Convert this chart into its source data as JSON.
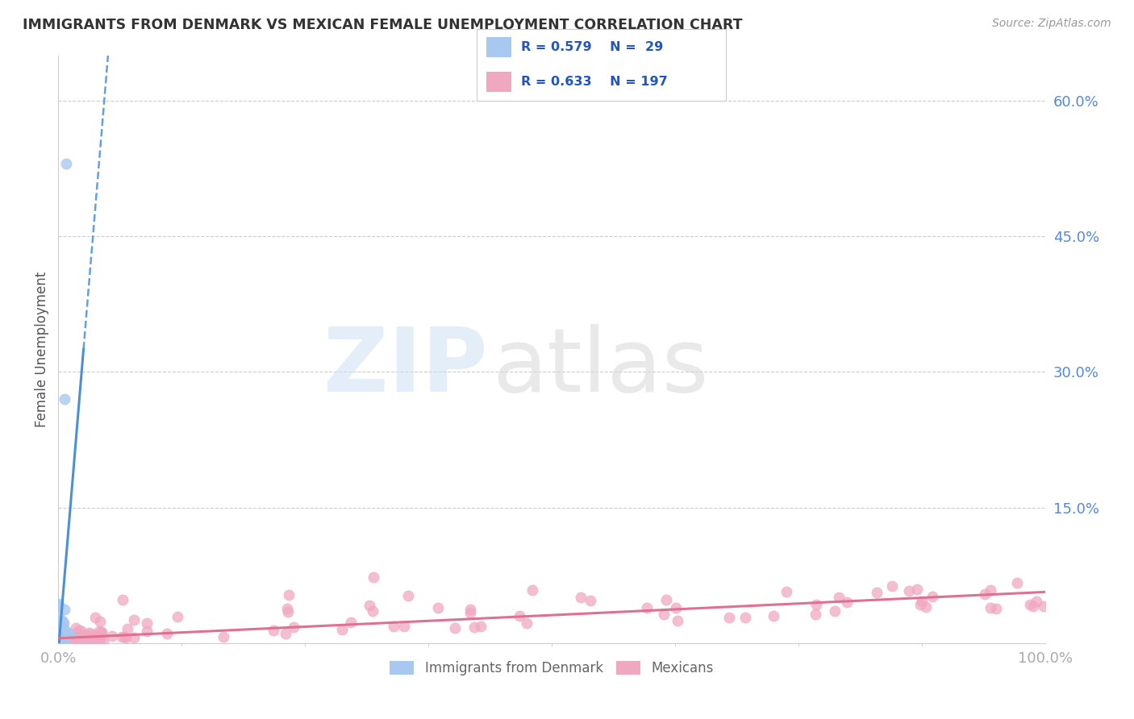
{
  "title": "IMMIGRANTS FROM DENMARK VS MEXICAN FEMALE UNEMPLOYMENT CORRELATION CHART",
  "source": "Source: ZipAtlas.com",
  "ylabel": "Female Unemployment",
  "xlim": [
    0,
    1.0
  ],
  "ylim": [
    0,
    0.65
  ],
  "yticks": [
    0.15,
    0.3,
    0.45,
    0.6
  ],
  "ytick_labels": [
    "15.0%",
    "30.0%",
    "45.0%",
    "60.0%"
  ],
  "legend_r1": "R = 0.579",
  "legend_n1": "N =  29",
  "legend_r2": "R = 0.633",
  "legend_n2": "N = 197",
  "legend_label1": "Immigrants from Denmark",
  "legend_label2": "Mexicans",
  "color_denmark": "#a8c8f0",
  "color_mexico": "#f0a8c0",
  "color_denmark_line": "#4a90d9",
  "color_mexico_line": "#e07090",
  "background_color": "#ffffff",
  "tick_color_right": "#5588dd",
  "tick_color_bottom": "#aaaaaa",
  "n_denmark": 29,
  "n_mexico": 197
}
